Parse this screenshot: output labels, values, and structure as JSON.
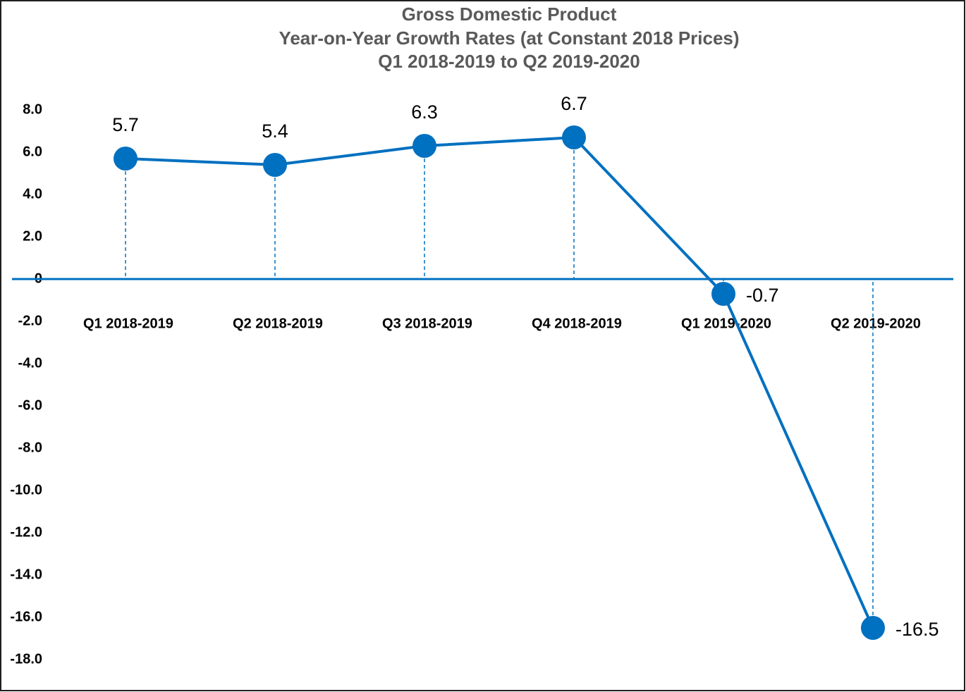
{
  "chart_data": {
    "type": "line",
    "title": [
      "Gross Domestic Product",
      "Year-on-Year Growth Rates (at Constant 2018 Prices)",
      "Q1 2018-2019 to Q2 2019-2020"
    ],
    "categories": [
      "Q1 2018-2019",
      "Q2 2018-2019",
      "Q3 2018-2019",
      "Q4 2018-2019",
      "Q1 2019-2020",
      "Q2 2019-2020"
    ],
    "values": [
      5.7,
      5.4,
      6.3,
      6.7,
      -0.7,
      -16.5
    ],
    "color": "#0070c0",
    "ylim": [
      -19.5,
      9.5
    ],
    "yticks": [
      {
        "value": 8,
        "label": "8.0"
      },
      {
        "value": 6,
        "label": "6.0"
      },
      {
        "value": 4,
        "label": "4.0"
      },
      {
        "value": 2,
        "label": "2.0"
      },
      0,
      {
        "value": -2,
        "label": "-2.0"
      },
      {
        "value": -4,
        "label": "-4.0"
      },
      {
        "value": -6,
        "label": "-6.0"
      },
      {
        "value": -8,
        "label": "-8.0"
      },
      {
        "value": -10,
        "label": "-10.0"
      },
      {
        "value": -12,
        "label": "-12.0"
      },
      {
        "value": -14,
        "label": "-14.0"
      },
      {
        "value": -16,
        "label": "-16.0"
      },
      {
        "value": -18,
        "label": "-18.0"
      }
    ],
    "grid": false,
    "drop_lines": true,
    "markers": true
  }
}
